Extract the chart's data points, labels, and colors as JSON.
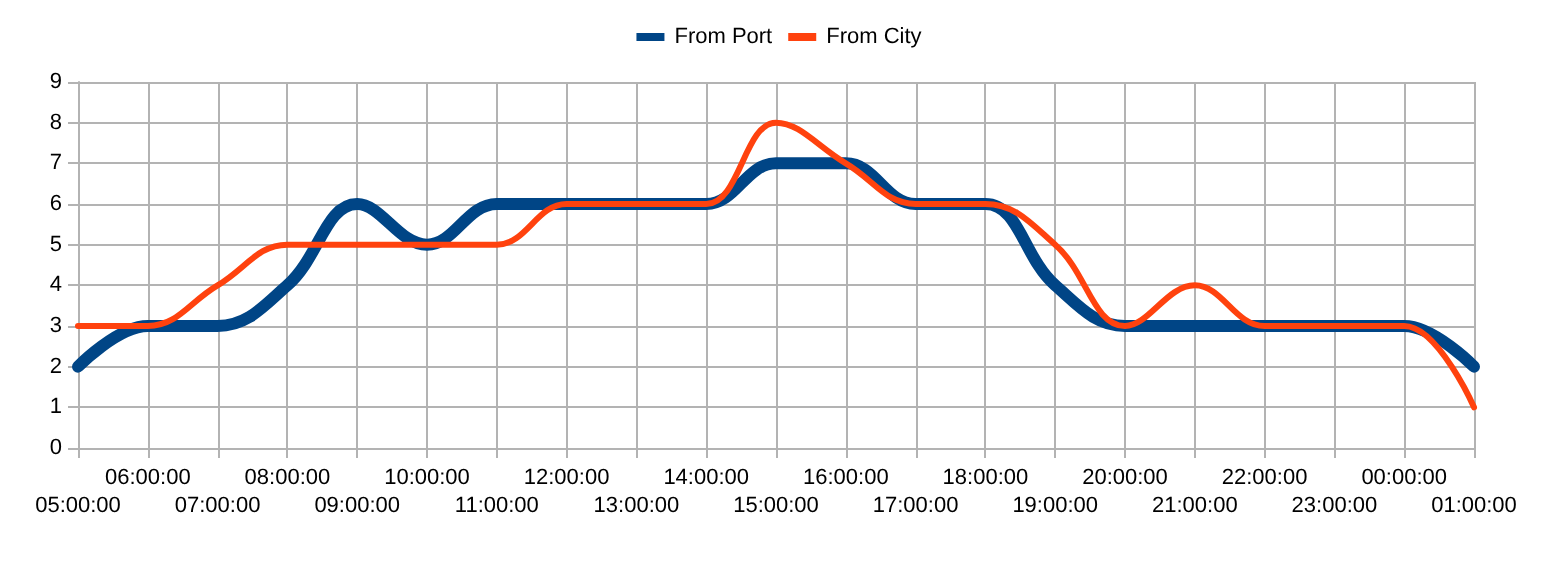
{
  "chart_data": {
    "type": "line",
    "categories": [
      "05:00:00",
      "06:00:00",
      "07:00:00",
      "08:00:00",
      "09:00:00",
      "10:00:00",
      "11:00:00",
      "12:00:00",
      "13:00:00",
      "14:00:00",
      "15:00:00",
      "16:00:00",
      "17:00:00",
      "18:00:00",
      "19:00:00",
      "20:00:00",
      "21:00:00",
      "22:00:00",
      "23:00:00",
      "00:00:00",
      "01:00:00"
    ],
    "series": [
      {
        "name": "From Port",
        "color": "#004586",
        "values": [
          2,
          3,
          3,
          4,
          6,
          5,
          6,
          6,
          6,
          6,
          7,
          7,
          6,
          6,
          4,
          3,
          3,
          3,
          3,
          3,
          2
        ]
      },
      {
        "name": "From City",
        "color": "#ff420e",
        "values": [
          3,
          3,
          4,
          5,
          5,
          5,
          5,
          6,
          6,
          6,
          8,
          7,
          6,
          6,
          5,
          3,
          4,
          3,
          3,
          3,
          1
        ]
      }
    ],
    "ylim": [
      0,
      9
    ],
    "yticks": [
      0,
      1,
      2,
      3,
      4,
      5,
      6,
      7,
      8,
      9
    ],
    "grid": true,
    "legend": "top",
    "marker": "none",
    "line_style": "solid"
  }
}
